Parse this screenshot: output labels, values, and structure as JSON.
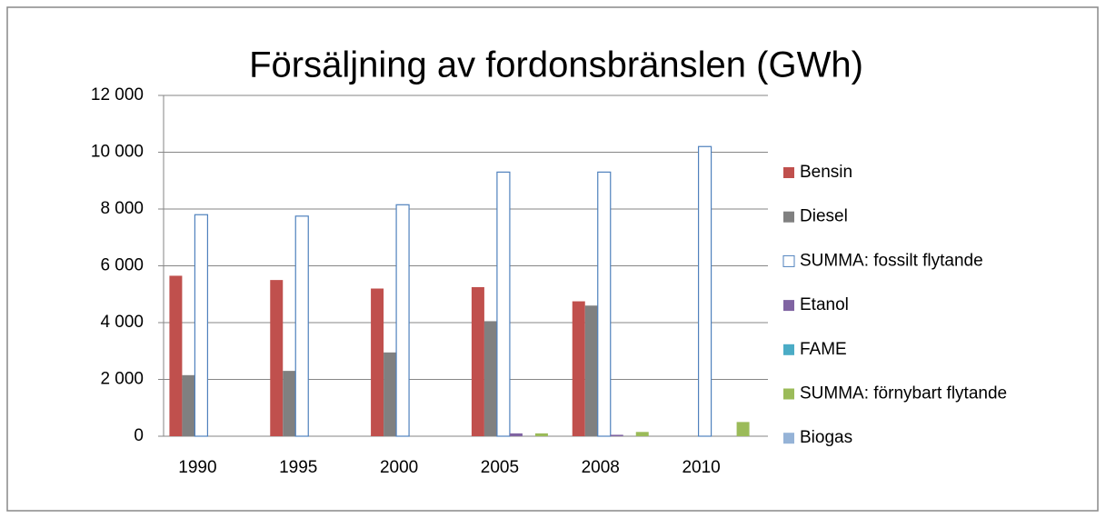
{
  "chart_data": {
    "type": "bar",
    "title": "Försäljning av fordonsbränslen (GWh)",
    "categories": [
      "1990",
      "1995",
      "2000",
      "2005",
      "2008",
      "2010"
    ],
    "series": [
      {
        "name": "Bensin",
        "color": "#c0504d",
        "values": [
          5650,
          5500,
          5200,
          5250,
          4750,
          null
        ]
      },
      {
        "name": "Diesel",
        "color": "#808080",
        "values": [
          2150,
          2300,
          2950,
          4050,
          4600,
          null
        ]
      },
      {
        "name": "SUMMA: fossilt flytande",
        "color": "#4f81bd",
        "fill": "#ffffff",
        "values": [
          7800,
          7750,
          8150,
          9300,
          9300,
          10200
        ]
      },
      {
        "name": "Etanol",
        "color": "#8064a2",
        "values": [
          null,
          null,
          null,
          100,
          50,
          null
        ]
      },
      {
        "name": "FAME",
        "color": "#4bacc6",
        "values": [
          null,
          null,
          null,
          null,
          null,
          null
        ]
      },
      {
        "name": "SUMMA: förnybart flytande",
        "color": "#9bbb59",
        "values": [
          null,
          null,
          null,
          100,
          150,
          500
        ]
      },
      {
        "name": "Biogas",
        "color": "#95b3d7",
        "values": [
          null,
          null,
          null,
          null,
          null,
          null
        ]
      }
    ],
    "ylim": [
      0,
      12000
    ],
    "yticks": [
      0,
      {
        "value": 2000,
        "label": "2 000"
      },
      {
        "value": 4000,
        "label": "4 000"
      },
      {
        "value": 6000,
        "label": "6 000"
      },
      {
        "value": 8000,
        "label": "8 000"
      },
      {
        "value": 10000,
        "label": "10 000"
      },
      {
        "value": 12000,
        "label": "12 000"
      }
    ],
    "grid": true,
    "legend": "right"
  }
}
